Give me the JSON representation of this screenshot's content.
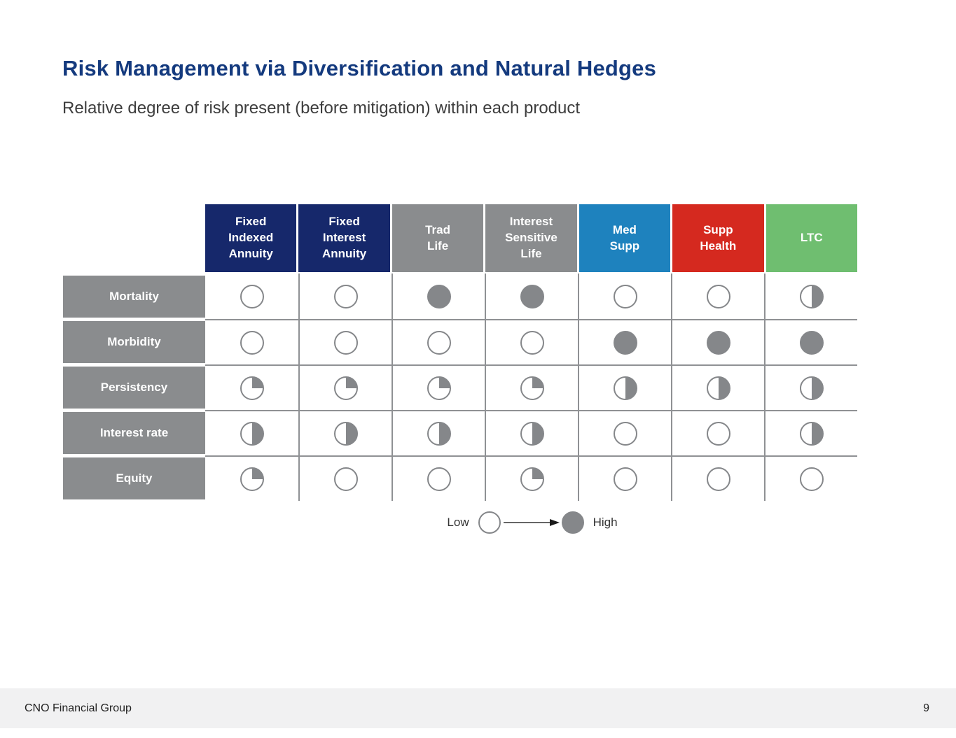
{
  "slide": {
    "title": "Risk Management via Diversification and Natural Hedges",
    "subtitle": "Relative degree of risk present (before mitigation) within each product"
  },
  "legend": {
    "low_label": "Low",
    "high_label": "High"
  },
  "footer": {
    "company": "CNO Financial Group",
    "page_number": "9"
  },
  "colors": {
    "title_navy": "#143a7e",
    "header_navy": "#16286b",
    "header_gray": "#8a8c8e",
    "header_blue": "#1e82be",
    "header_red": "#d5291f",
    "header_green": "#6fbe70",
    "ball_gray": "#85878a",
    "grid_line": "#8f9194",
    "footer_bg": "#f1f1f2"
  },
  "chart_data": {
    "type": "table",
    "title": "Relative degree of risk present (before mitigation) within each product",
    "legend_position": "bottom-center",
    "value_scale": "harvey-ball fraction filled: 0 = low risk, 0.25 = quarter, 0.5 = half, 1 = high risk",
    "columns": [
      {
        "label": "Fixed\nIndexed\nAnnuity",
        "color": "#16286b"
      },
      {
        "label": "Fixed\nInterest\nAnnuity",
        "color": "#16286b"
      },
      {
        "label": "Trad\nLife",
        "color": "#8a8c8e"
      },
      {
        "label": "Interest\nSensitive\nLife",
        "color": "#8a8c8e"
      },
      {
        "label": "Med\nSupp",
        "color": "#1e82be"
      },
      {
        "label": "Supp\nHealth",
        "color": "#d5291f"
      },
      {
        "label": "LTC",
        "color": "#6fbe70"
      }
    ],
    "rows": [
      "Mortality",
      "Morbidity",
      "Persistency",
      "Interest rate",
      "Equity"
    ],
    "values": [
      [
        0,
        0,
        1,
        1,
        0,
        0,
        0.5
      ],
      [
        0,
        0,
        0,
        0,
        1,
        1,
        1
      ],
      [
        0.25,
        0.25,
        0.25,
        0.25,
        0.5,
        0.5,
        0.5
      ],
      [
        0.5,
        0.5,
        0.5,
        0.5,
        0,
        0,
        0.5
      ],
      [
        0.25,
        0,
        0,
        0.25,
        0,
        0,
        0
      ]
    ]
  }
}
